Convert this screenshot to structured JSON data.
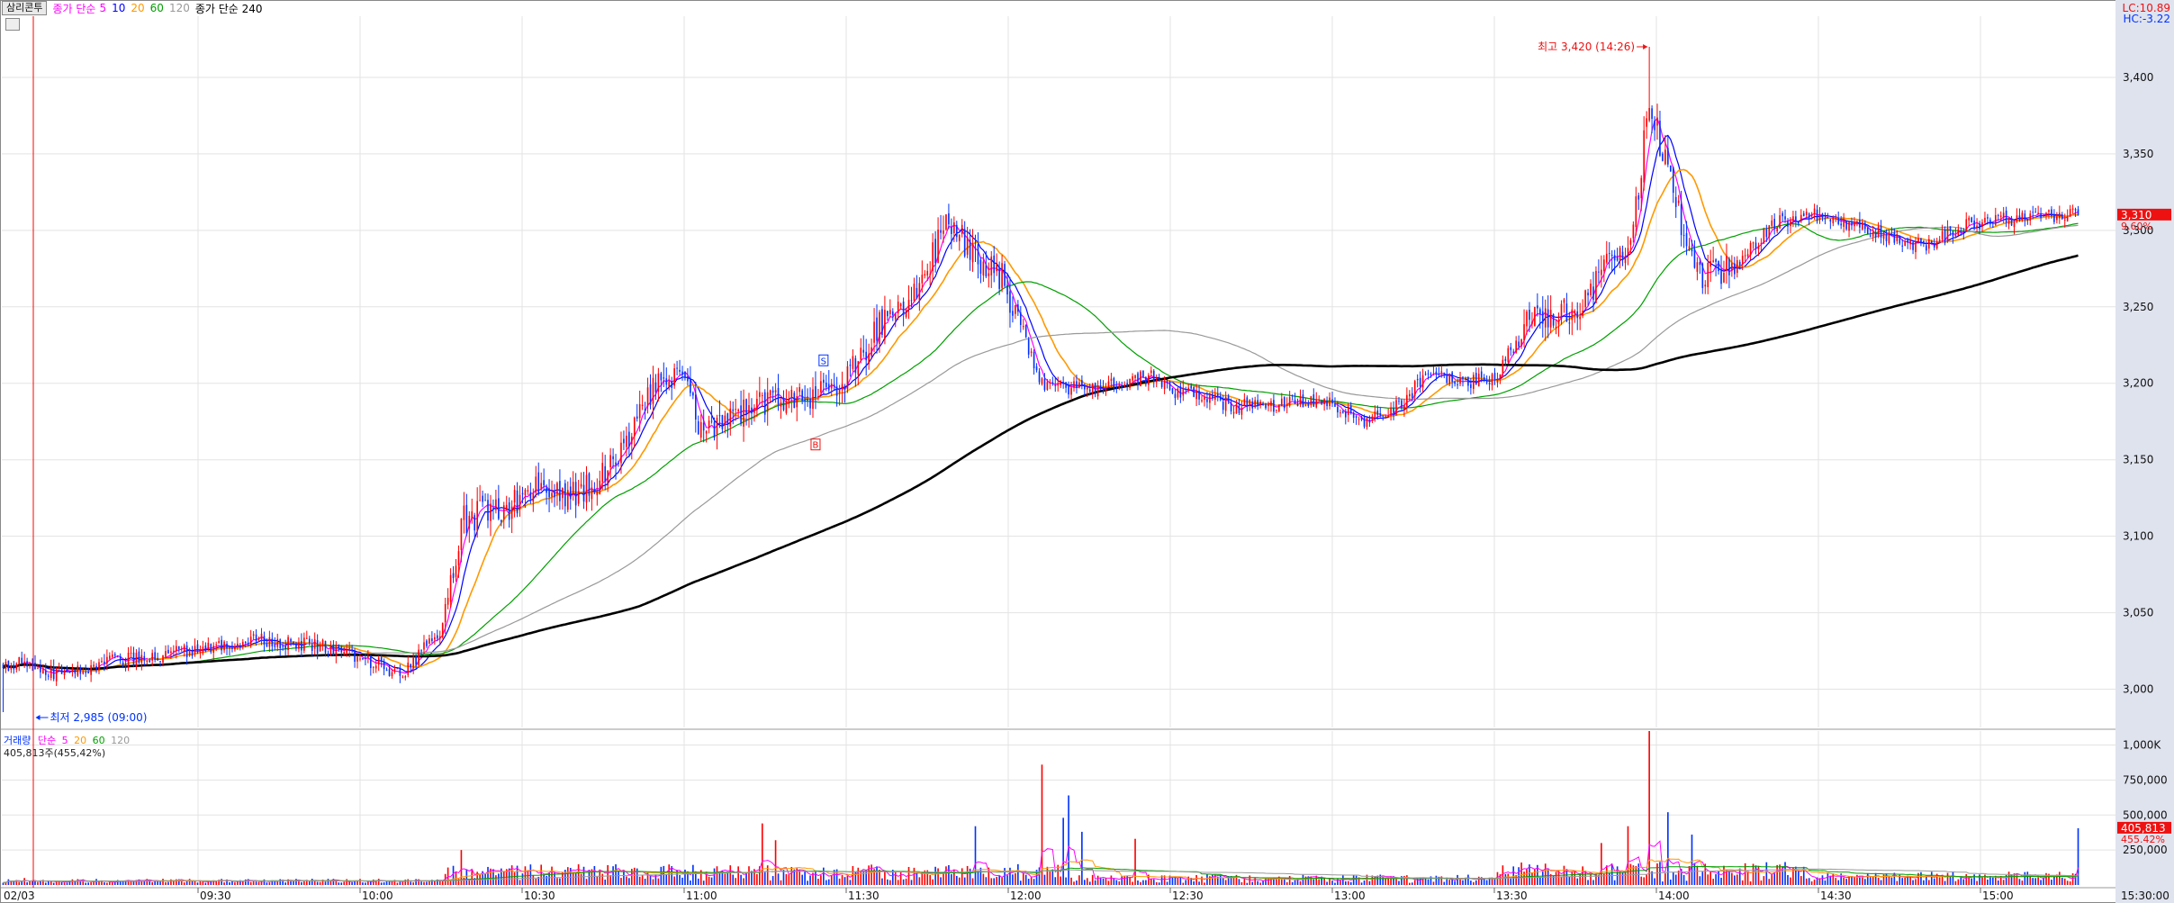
{
  "header": {
    "stock_name": "삼리콘투",
    "price_ma_label": "종가 단순",
    "price_ma_periods": [
      "5",
      "10",
      "20",
      "60",
      "120"
    ],
    "price_ma_extra": "종가 단순 240",
    "lc_label": "LC:10.89",
    "hc_label": "HC:-3.22"
  },
  "volume_panel": {
    "label": "거래량",
    "ma_label": "단순",
    "ma_periods": [
      "5",
      "20",
      "60",
      "120"
    ],
    "info": "405,813주(455,42%)"
  },
  "colors": {
    "up": "#ff0000",
    "down": "#0032ff",
    "ma5": "#ff00ff",
    "ma10": "#0000ff",
    "ma20": "#ff9900",
    "ma60": "#00a000",
    "ma120": "#999999",
    "ma240": "#000000",
    "price_tag_bg": "#ee1111",
    "axis_bg": "#dfe3ee"
  },
  "chart_data": [
    {
      "type": "candlestick",
      "x_ticks": [
        "02/03",
        "09:30",
        "10:00",
        "10:30",
        "11:00",
        "11:30",
        "12:00",
        "12:30",
        "13:00",
        "13:30",
        "14:00",
        "14:30",
        "15:00",
        "15:30:00"
      ],
      "y_ticks": [
        "3,400",
        "3,350",
        "3,300",
        "3,250",
        "3,200",
        "3,150",
        "3,100",
        "3,050",
        "3,000"
      ],
      "ylim": [
        2975,
        3440
      ],
      "series_names": [
        "5",
        "10",
        "20",
        "60",
        "120",
        "240"
      ],
      "annotations": {
        "high": "최고 3,420 (14:26)",
        "low": "최저 2,985 (09:00)"
      },
      "current_price": "3,310",
      "current_change": "9.60%",
      "markers": [
        "S",
        "B"
      ],
      "anchors": [
        [
          0,
          3015
        ],
        [
          8,
          3020
        ],
        [
          20,
          3010
        ],
        [
          40,
          3018
        ],
        [
          60,
          3022
        ],
        [
          80,
          3030
        ],
        [
          100,
          3032
        ],
        [
          120,
          3028
        ],
        [
          135,
          3020
        ],
        [
          150,
          3010
        ],
        [
          165,
          3040
        ],
        [
          172,
          3110
        ],
        [
          190,
          3120
        ],
        [
          205,
          3135
        ],
        [
          215,
          3125
        ],
        [
          230,
          3150
        ],
        [
          245,
          3200
        ],
        [
          255,
          3210
        ],
        [
          262,
          3165
        ],
        [
          272,
          3180
        ],
        [
          285,
          3185
        ],
        [
          300,
          3190
        ],
        [
          315,
          3200
        ],
        [
          330,
          3240
        ],
        [
          345,
          3265
        ],
        [
          355,
          3310
        ],
        [
          365,
          3280
        ],
        [
          375,
          3270
        ],
        [
          390,
          3200
        ],
        [
          410,
          3195
        ],
        [
          430,
          3205
        ],
        [
          440,
          3195
        ],
        [
          450,
          3190
        ],
        [
          465,
          3185
        ],
        [
          480,
          3185
        ],
        [
          495,
          3190
        ],
        [
          510,
          3175
        ],
        [
          520,
          3180
        ],
        [
          535,
          3205
        ],
        [
          550,
          3200
        ],
        [
          560,
          3205
        ],
        [
          575,
          3245
        ],
        [
          590,
          3245
        ],
        [
          600,
          3270
        ],
        [
          612,
          3300
        ],
        [
          618,
          3385
        ],
        [
          626,
          3330
        ],
        [
          636,
          3270
        ],
        [
          650,
          3275
        ],
        [
          665,
          3305
        ],
        [
          680,
          3310
        ],
        [
          700,
          3300
        ],
        [
          720,
          3290
        ],
        [
          740,
          3305
        ],
        [
          765,
          3310
        ],
        [
          779,
          3310
        ]
      ]
    },
    {
      "type": "bar",
      "title": "거래량",
      "y_ticks": [
        "1,000K",
        "750,000",
        "500,000",
        "250,000"
      ],
      "ylim": [
        0,
        1100000
      ],
      "current_volume": "405,813",
      "current_ratio": "455.42%"
    }
  ]
}
